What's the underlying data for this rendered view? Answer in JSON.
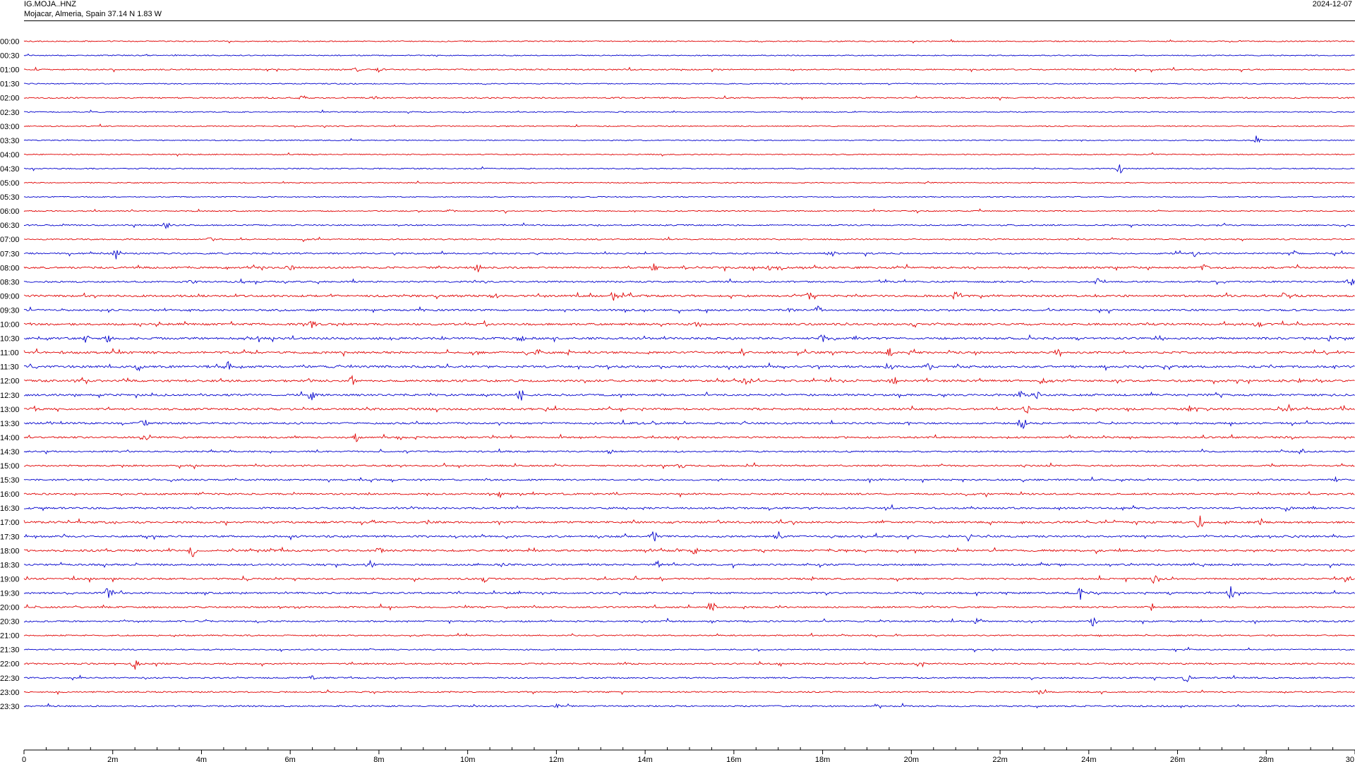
{
  "header": {
    "station_code": "IG.MOJA..HNZ",
    "location": "Mojacar, Almeria, Spain  37.14 N 1.83 W",
    "date": "2024-12-07"
  },
  "colors": {
    "even_trace": "#e00000",
    "odd_trace": "#0000cc",
    "axis": "#000000",
    "background": "#ffffff"
  },
  "chart_data": {
    "type": "line",
    "subtype": "helicorder",
    "row_labels": [
      "00:00",
      "00:30",
      "01:00",
      "01:30",
      "02:00",
      "02:30",
      "03:00",
      "03:30",
      "04:00",
      "04:30",
      "05:00",
      "05:30",
      "06:00",
      "06:30",
      "07:00",
      "07:30",
      "08:00",
      "08:30",
      "09:00",
      "09:30",
      "10:00",
      "10:30",
      "11:00",
      "11:30",
      "12:00",
      "12:30",
      "13:00",
      "13:30",
      "14:00",
      "14:30",
      "15:00",
      "15:30",
      "16:00",
      "16:30",
      "17:00",
      "17:30",
      "18:00",
      "18:30",
      "19:00",
      "19:30",
      "20:00",
      "20:30",
      "21:00",
      "21:30",
      "22:00",
      "22:30",
      "23:00",
      "23:30"
    ],
    "x_ticks": [
      "0",
      "2m",
      "4m",
      "6m",
      "8m",
      "10m",
      "12m",
      "14m",
      "16m",
      "18m",
      "20m",
      "22m",
      "24m",
      "26m",
      "28m",
      "30"
    ],
    "xlim": [
      0,
      30
    ],
    "x_unit": "minutes",
    "grid": false,
    "trace_colors_alternate": [
      "#e00000",
      "#0000cc"
    ],
    "activity": [
      0.15,
      0.1,
      0.25,
      0.1,
      0.25,
      0.1,
      0.1,
      0.1,
      0.1,
      0.15,
      0.1,
      0.1,
      0.15,
      0.25,
      0.25,
      0.35,
      0.6,
      0.45,
      0.7,
      0.55,
      0.7,
      0.75,
      0.7,
      0.75,
      0.7,
      0.65,
      0.7,
      0.6,
      0.5,
      0.4,
      0.45,
      0.45,
      0.5,
      0.5,
      0.65,
      0.6,
      0.65,
      0.55,
      0.5,
      0.55,
      0.45,
      0.4,
      0.25,
      0.2,
      0.35,
      0.3,
      0.3,
      0.35
    ],
    "events": [
      {
        "row": 2,
        "minute": 8.0,
        "amp": 3
      },
      {
        "row": 2,
        "minute": 7.5,
        "amp": 2
      },
      {
        "row": 4,
        "minute": 6.3,
        "amp": 3
      },
      {
        "row": 4,
        "minute": 7.9,
        "amp": 2
      },
      {
        "row": 7,
        "minute": 27.8,
        "amp": 8
      },
      {
        "row": 9,
        "minute": 24.7,
        "amp": 7
      },
      {
        "row": 12,
        "minute": 9.6,
        "amp": 2
      },
      {
        "row": 13,
        "minute": 3.2,
        "amp": 4
      },
      {
        "row": 14,
        "minute": 4.2,
        "amp": 3
      },
      {
        "row": 15,
        "minute": 2.1,
        "amp": 9
      },
      {
        "row": 15,
        "minute": 18.2,
        "amp": 5
      },
      {
        "row": 15,
        "minute": 26.4,
        "amp": 4
      },
      {
        "row": 15,
        "minute": 28.6,
        "amp": 5
      },
      {
        "row": 16,
        "minute": 6.0,
        "amp": 5
      },
      {
        "row": 16,
        "minute": 10.2,
        "amp": 9
      },
      {
        "row": 16,
        "minute": 14.2,
        "amp": 5
      },
      {
        "row": 16,
        "minute": 16.8,
        "amp": 4
      },
      {
        "row": 16,
        "minute": 26.6,
        "amp": 5
      },
      {
        "row": 17,
        "minute": 3.8,
        "amp": 4
      },
      {
        "row": 17,
        "minute": 4.9,
        "amp": 4
      },
      {
        "row": 17,
        "minute": 24.2,
        "amp": 4
      },
      {
        "row": 17,
        "minute": 29.9,
        "amp": 5
      },
      {
        "row": 18,
        "minute": 10.6,
        "amp": 4
      },
      {
        "row": 18,
        "minute": 13.3,
        "amp": 7
      },
      {
        "row": 18,
        "minute": 17.7,
        "amp": 6
      },
      {
        "row": 18,
        "minute": 21.0,
        "amp": 7
      },
      {
        "row": 18,
        "minute": 28.4,
        "amp": 5
      },
      {
        "row": 19,
        "minute": 17.3,
        "amp": 5
      },
      {
        "row": 19,
        "minute": 17.9,
        "amp": 5
      },
      {
        "row": 20,
        "minute": 6.5,
        "amp": 5
      },
      {
        "row": 20,
        "minute": 15.2,
        "amp": 6
      },
      {
        "row": 20,
        "minute": 27.8,
        "amp": 6
      },
      {
        "row": 21,
        "minute": 1.4,
        "amp": 6
      },
      {
        "row": 21,
        "minute": 1.9,
        "amp": 6
      },
      {
        "row": 21,
        "minute": 11.2,
        "amp": 6
      },
      {
        "row": 21,
        "minute": 18.0,
        "amp": 5
      },
      {
        "row": 21,
        "minute": 29.4,
        "amp": 4
      },
      {
        "row": 22,
        "minute": 11.6,
        "amp": 5
      },
      {
        "row": 22,
        "minute": 19.5,
        "amp": 6
      },
      {
        "row": 22,
        "minute": 23.3,
        "amp": 5
      },
      {
        "row": 23,
        "minute": 2.6,
        "amp": 7
      },
      {
        "row": 23,
        "minute": 4.6,
        "amp": 8
      },
      {
        "row": 23,
        "minute": 19.5,
        "amp": 6
      },
      {
        "row": 23,
        "minute": 20.4,
        "amp": 5
      },
      {
        "row": 24,
        "minute": 7.4,
        "amp": 6
      },
      {
        "row": 24,
        "minute": 16.3,
        "amp": 7
      },
      {
        "row": 24,
        "minute": 19.6,
        "amp": 6
      },
      {
        "row": 24,
        "minute": 23.0,
        "amp": 6
      },
      {
        "row": 24,
        "minute": 28.8,
        "amp": 5
      },
      {
        "row": 25,
        "minute": 6.5,
        "amp": 7
      },
      {
        "row": 25,
        "minute": 11.2,
        "amp": 9
      },
      {
        "row": 25,
        "minute": 22.5,
        "amp": 8
      },
      {
        "row": 25,
        "minute": 22.8,
        "amp": 7
      },
      {
        "row": 26,
        "minute": 0.2,
        "amp": 5
      },
      {
        "row": 26,
        "minute": 22.6,
        "amp": 7
      },
      {
        "row": 26,
        "minute": 26.3,
        "amp": 6
      },
      {
        "row": 26,
        "minute": 28.5,
        "amp": 6
      },
      {
        "row": 27,
        "minute": 2.7,
        "amp": 7
      },
      {
        "row": 27,
        "minute": 16.2,
        "amp": 5
      },
      {
        "row": 27,
        "minute": 22.5,
        "amp": 10
      },
      {
        "row": 28,
        "minute": 2.7,
        "amp": 6
      },
      {
        "row": 28,
        "minute": 7.5,
        "amp": 6
      },
      {
        "row": 29,
        "minute": 13.2,
        "amp": 3
      },
      {
        "row": 29,
        "minute": 28.8,
        "amp": 4
      },
      {
        "row": 30,
        "minute": 14.8,
        "amp": 5
      },
      {
        "row": 31,
        "minute": 29.6,
        "amp": 4
      },
      {
        "row": 32,
        "minute": 10.7,
        "amp": 6
      },
      {
        "row": 33,
        "minute": 28.5,
        "amp": 7
      },
      {
        "row": 34,
        "minute": 26.5,
        "amp": 10
      },
      {
        "row": 34,
        "minute": 27.9,
        "amp": 6
      },
      {
        "row": 35,
        "minute": 14.2,
        "amp": 9
      },
      {
        "row": 35,
        "minute": 17.0,
        "amp": 7
      },
      {
        "row": 35,
        "minute": 21.3,
        "amp": 7
      },
      {
        "row": 36,
        "minute": 3.8,
        "amp": 10
      },
      {
        "row": 36,
        "minute": 8.0,
        "amp": 7
      },
      {
        "row": 36,
        "minute": 15.1,
        "amp": 6
      },
      {
        "row": 37,
        "minute": 7.8,
        "amp": 7
      },
      {
        "row": 37,
        "minute": 14.3,
        "amp": 6
      },
      {
        "row": 38,
        "minute": 10.4,
        "amp": 5
      },
      {
        "row": 38,
        "minute": 25.5,
        "amp": 8
      },
      {
        "row": 38,
        "minute": 29.8,
        "amp": 5
      },
      {
        "row": 39,
        "minute": 1.9,
        "amp": 9
      },
      {
        "row": 39,
        "minute": 23.8,
        "amp": 11
      },
      {
        "row": 39,
        "minute": 27.2,
        "amp": 10
      },
      {
        "row": 40,
        "minute": 15.5,
        "amp": 10
      },
      {
        "row": 40,
        "minute": 25.4,
        "amp": 6
      },
      {
        "row": 41,
        "minute": 21.5,
        "amp": 7
      },
      {
        "row": 41,
        "minute": 24.1,
        "amp": 7
      },
      {
        "row": 44,
        "minute": 2.5,
        "amp": 8
      },
      {
        "row": 44,
        "minute": 20.2,
        "amp": 7
      },
      {
        "row": 45,
        "minute": 6.5,
        "amp": 3
      },
      {
        "row": 45,
        "minute": 26.2,
        "amp": 8
      },
      {
        "row": 46,
        "minute": 22.9,
        "amp": 3
      },
      {
        "row": 47,
        "minute": 12.0,
        "amp": 3
      }
    ]
  }
}
